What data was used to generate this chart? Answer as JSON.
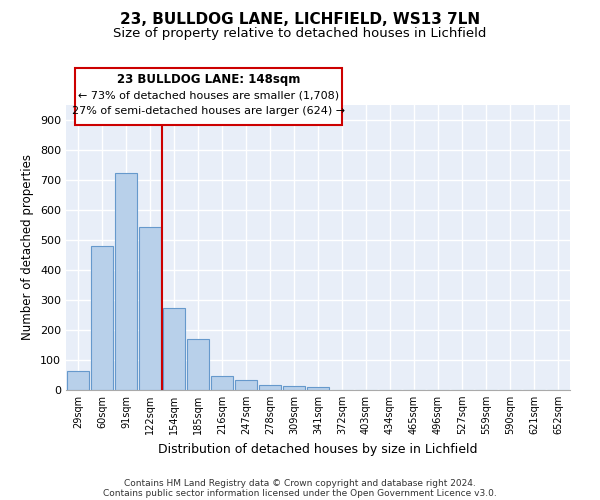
{
  "title1": "23, BULLDOG LANE, LICHFIELD, WS13 7LN",
  "title2": "Size of property relative to detached houses in Lichfield",
  "xlabel": "Distribution of detached houses by size in Lichfield",
  "ylabel": "Number of detached properties",
  "bar_labels": [
    "29sqm",
    "60sqm",
    "91sqm",
    "122sqm",
    "154sqm",
    "185sqm",
    "216sqm",
    "247sqm",
    "278sqm",
    "309sqm",
    "341sqm",
    "372sqm",
    "403sqm",
    "434sqm",
    "465sqm",
    "496sqm",
    "527sqm",
    "559sqm",
    "590sqm",
    "621sqm",
    "652sqm"
  ],
  "bar_values": [
    62,
    480,
    722,
    542,
    272,
    170,
    47,
    35,
    18,
    14,
    10,
    0,
    0,
    0,
    0,
    0,
    0,
    0,
    0,
    0,
    0
  ],
  "bar_color": "#b8d0ea",
  "bar_edge_color": "#6699cc",
  "red_line_index": 4,
  "ylim": [
    0,
    950
  ],
  "yticks": [
    0,
    100,
    200,
    300,
    400,
    500,
    600,
    700,
    800,
    900
  ],
  "annotation_line1": "23 BULLDOG LANE: 148sqm",
  "annotation_line2": "← 73% of detached houses are smaller (1,708)",
  "annotation_line3": "27% of semi-detached houses are larger (624) →",
  "annotation_box_color": "#cc0000",
  "background_color": "#e8eef8",
  "grid_color": "#ffffff",
  "title1_fontsize": 11,
  "title2_fontsize": 9.5,
  "footer_line1": "Contains HM Land Registry data © Crown copyright and database right 2024.",
  "footer_line2": "Contains public sector information licensed under the Open Government Licence v3.0."
}
